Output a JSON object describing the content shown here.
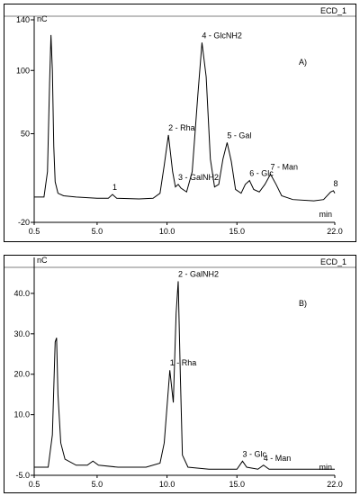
{
  "chart_data": [
    {
      "type": "line",
      "header": "ECD_1",
      "panel_label": "A)",
      "y_label": "nC",
      "x_label": "min",
      "color": "#000000",
      "xlim": [
        0.5,
        22.0
      ],
      "xticks": [
        0.5,
        {
          "value": 5,
          "label": "5.0"
        },
        {
          "value": 10,
          "label": "10.0"
        },
        {
          "value": 15,
          "label": "15.0"
        },
        {
          "value": 22,
          "label": "22.0"
        }
      ],
      "ylim": [
        -20,
        140
      ],
      "yticks": [
        -20,
        50,
        100,
        140
      ],
      "x": [
        0.5,
        1.2,
        1.45,
        1.6,
        1.7,
        1.8,
        1.9,
        2.0,
        2.2,
        2.6,
        3.5,
        5.0,
        5.8,
        6.1,
        6.4,
        8.0,
        9.0,
        9.5,
        9.8,
        10.1,
        10.4,
        10.6,
        10.8,
        11.0,
        11.4,
        11.8,
        12.2,
        12.5,
        12.8,
        13.1,
        13.4,
        13.7,
        14.0,
        14.3,
        14.6,
        14.9,
        15.3,
        15.6,
        15.9,
        16.2,
        16.6,
        17.0,
        17.4,
        17.8,
        18.2,
        19.0,
        20.5,
        21.2,
        21.7,
        21.9,
        22.0
      ],
      "values": [
        0,
        0,
        20,
        90,
        128,
        100,
        40,
        12,
        3,
        1,
        0,
        -1,
        -1,
        2,
        -1,
        -1.5,
        -1,
        3,
        25,
        49,
        20,
        8,
        10,
        7,
        4,
        20,
        80,
        122,
        95,
        30,
        8,
        10,
        30,
        43,
        28,
        6,
        3,
        10,
        13,
        6,
        4,
        10,
        18,
        10,
        1,
        -2,
        -3,
        -2,
        4,
        5,
        3
      ],
      "annotations": [
        {
          "text": "1",
          "x": 6.1,
          "y": 2
        },
        {
          "text": "2 - Rha",
          "x": 10.1,
          "y": 49
        },
        {
          "text": "3 - GalNH2",
          "x": 10.8,
          "y": 10
        },
        {
          "text": "4 - GlcNH2",
          "x": 12.5,
          "y": 122
        },
        {
          "text": "5 - Gal",
          "x": 14.3,
          "y": 43
        },
        {
          "text": "6 - Glc",
          "x": 15.9,
          "y": 13
        },
        {
          "text": "7 - Man",
          "x": 17.4,
          "y": 18
        },
        {
          "text": "8",
          "x": 21.9,
          "y": 5
        }
      ]
    },
    {
      "type": "line",
      "header": "ECD_1",
      "panel_label": "B)",
      "y_label": "nC",
      "x_label": "min",
      "color": "#000000",
      "xlim": [
        0.5,
        22.0
      ],
      "xticks": [
        0.5,
        {
          "value": 5,
          "label": "5.0"
        },
        {
          "value": 10,
          "label": "10.0"
        },
        {
          "value": 15,
          "label": "15.0"
        },
        {
          "value": 22,
          "label": "22.0"
        }
      ],
      "ylim": [
        -5,
        48
      ],
      "yticks": [
        {
          "value": -5,
          "label": "-5.0"
        },
        {
          "value": 10,
          "label": "10.0"
        },
        {
          "value": 20,
          "label": "20.0"
        },
        {
          "value": 30,
          "label": "30.0"
        },
        {
          "value": 40,
          "label": "40.0"
        }
      ],
      "x": [
        0.5,
        1.5,
        1.8,
        2.0,
        2.1,
        2.2,
        2.4,
        2.7,
        3.5,
        4.3,
        4.7,
        5.1,
        6.5,
        8.5,
        9.5,
        9.8,
        10.2,
        10.45,
        10.65,
        10.8,
        10.95,
        11.1,
        11.5,
        13.0,
        15.0,
        15.4,
        15.7,
        16.5,
        16.9,
        17.3,
        19.0,
        22.0
      ],
      "values": [
        -3,
        -3,
        5,
        28,
        29,
        15,
        3,
        -1,
        -2.5,
        -2.5,
        -1.5,
        -2.5,
        -3,
        -3,
        -2,
        3,
        21,
        13,
        35,
        43,
        20,
        0,
        -3,
        -3.5,
        -3.5,
        -1.5,
        -3,
        -3.5,
        -2.5,
        -3.5,
        -3.5,
        -3.5
      ],
      "annotations": [
        {
          "text": "1 - Rha",
          "x": 10.2,
          "y": 21
        },
        {
          "text": "2 - GalNH2",
          "x": 10.8,
          "y": 43
        },
        {
          "text": "3 - Glc",
          "x": 15.4,
          "y": -1.5
        },
        {
          "text": "4 - Man",
          "x": 16.9,
          "y": -2.5
        }
      ]
    }
  ]
}
